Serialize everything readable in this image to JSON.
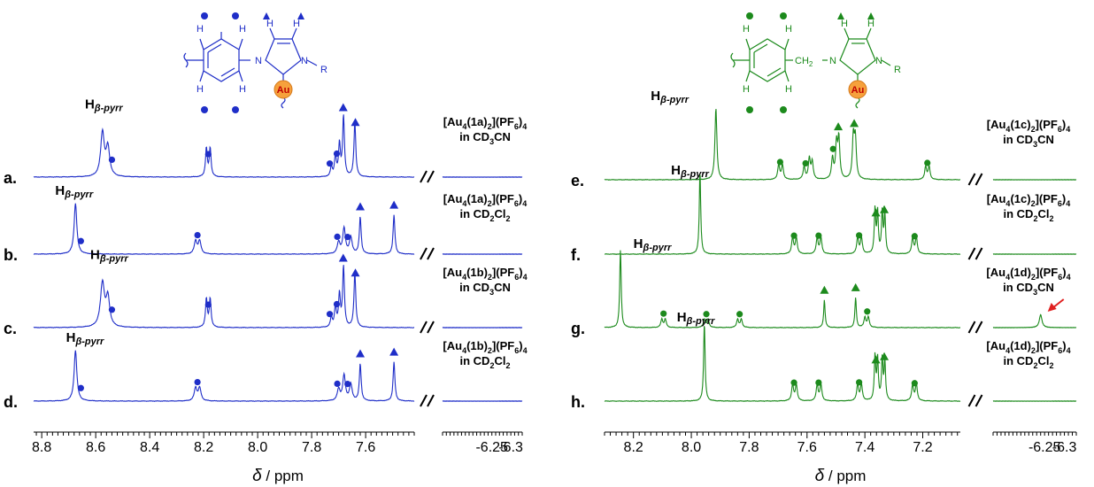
{
  "chart_data": [
    {
      "type": "line",
      "panel": "left",
      "color": "#1f2ec8",
      "xlabel_symbol": "δ",
      "xlabel_unit": "/ ppm",
      "x_ticks": [
        "8.8",
        "8.6",
        "8.4",
        "8.2",
        "8.0",
        "7.8",
        "7.6"
      ],
      "x_ticks_break": [
        "-6.25",
        "-6.3"
      ],
      "xlim": [
        8.83,
        7.42
      ],
      "xlim_break": [
        -6.12,
        -6.33
      ],
      "structure_labels": {
        "h": "H",
        "n1": "N",
        "n2": "N",
        "r": "R",
        "au": "Au"
      },
      "peak_label": {
        "main": "H",
        "sub": "β-pyrr"
      },
      "rows": [
        {
          "id": "a.",
          "ann1": "[Au",
          "s1": "4",
          "ann2": "(1a)",
          "s2": "2",
          "ann3": "](PF",
          "s3": "6",
          "ann4": ")",
          "s4": "4",
          "solvent": "in CD",
          "sol_sub": "3",
          "sol_end": "CN",
          "peaks": [
            {
              "x": 8.575,
              "h": 0.95,
              "w": 0.008
            },
            {
              "x": 8.555,
              "h": 0.62,
              "w": 0.008
            },
            {
              "x": 8.19,
              "h": 0.62,
              "w": 0.004
            },
            {
              "x": 8.176,
              "h": 0.62,
              "w": 0.004
            },
            {
              "x": 7.727,
              "h": 0.22,
              "w": 0.004
            },
            {
              "x": 7.712,
              "h": 0.45,
              "w": 0.004
            },
            {
              "x": 7.697,
              "h": 0.7,
              "w": 0.004
            },
            {
              "x": 7.682,
              "h": 1.3,
              "w": 0.004
            },
            {
              "x": 7.64,
              "h": 1.2,
              "w": 0.004
            }
          ],
          "markers": [
            {
              "x": 8.54,
              "type": "circle"
            },
            {
              "x": 8.183,
              "type": "circle"
            },
            {
              "x": 7.733,
              "type": "circle"
            },
            {
              "x": 7.707,
              "type": "circle"
            },
            {
              "x": 7.683,
              "type": "triangle"
            },
            {
              "x": 7.638,
              "type": "triangle"
            }
          ],
          "hlabel_x": 8.64
        },
        {
          "id": "b.",
          "ann1": "[Au",
          "s1": "4",
          "ann2": "(1a)",
          "s2": "2",
          "ann3": "](PF",
          "s3": "6",
          "ann4": ")",
          "s4": "4",
          "solvent": "in CD",
          "sol_sub": "2",
          "sol_end": "Cl",
          "sol_sub2": "2",
          "peaks": [
            {
              "x": 8.675,
              "h": 1.1,
              "w": 0.006
            },
            {
              "x": 8.23,
              "h": 0.28,
              "w": 0.006
            },
            {
              "x": 8.215,
              "h": 0.28,
              "w": 0.006
            },
            {
              "x": 7.7,
              "h": 0.25,
              "w": 0.006
            },
            {
              "x": 7.68,
              "h": 0.55,
              "w": 0.006
            },
            {
              "x": 7.655,
              "h": 0.35,
              "w": 0.006
            },
            {
              "x": 7.62,
              "h": 0.8,
              "w": 0.004
            },
            {
              "x": 7.495,
              "h": 0.85,
              "w": 0.004
            }
          ],
          "markers": [
            {
              "x": 8.655,
              "type": "circle"
            },
            {
              "x": 8.223,
              "type": "circle"
            },
            {
              "x": 7.705,
              "type": "circle"
            },
            {
              "x": 7.667,
              "type": "circle"
            },
            {
              "x": 7.62,
              "type": "triangle"
            },
            {
              "x": 7.495,
              "type": "triangle"
            }
          ],
          "hlabel_x": 8.75
        },
        {
          "id": "c.",
          "ann1": "[Au",
          "s1": "4",
          "ann2": "(1b)",
          "s2": "2",
          "ann3": "](PF",
          "s3": "6",
          "ann4": ")",
          "s4": "4",
          "solvent": "in CD",
          "sol_sub": "3",
          "sol_end": "CN",
          "peaks": [
            {
              "x": 8.575,
              "h": 0.95,
              "w": 0.009
            },
            {
              "x": 8.555,
              "h": 0.62,
              "w": 0.008
            },
            {
              "x": 8.19,
              "h": 0.62,
              "w": 0.004
            },
            {
              "x": 8.176,
              "h": 0.62,
              "w": 0.004
            },
            {
              "x": 7.727,
              "h": 0.22,
              "w": 0.004
            },
            {
              "x": 7.712,
              "h": 0.45,
              "w": 0.004
            },
            {
              "x": 7.697,
              "h": 0.7,
              "w": 0.004
            },
            {
              "x": 7.682,
              "h": 1.3,
              "w": 0.004
            },
            {
              "x": 7.64,
              "h": 1.2,
              "w": 0.004
            }
          ],
          "markers": [
            {
              "x": 8.54,
              "type": "circle"
            },
            {
              "x": 8.183,
              "type": "circle"
            },
            {
              "x": 7.733,
              "type": "circle"
            },
            {
              "x": 7.707,
              "type": "circle"
            },
            {
              "x": 7.683,
              "type": "triangle"
            },
            {
              "x": 7.638,
              "type": "triangle"
            }
          ],
          "hlabel_x": 8.62
        },
        {
          "id": "d.",
          "ann1": "[Au",
          "s1": "4",
          "ann2": "(1b)",
          "s2": "2",
          "ann3": "](PF",
          "s3": "6",
          "ann4": ")",
          "s4": "4",
          "solvent": "in CD",
          "sol_sub": "2",
          "sol_end": "Cl",
          "sol_sub2": "2",
          "peaks": [
            {
              "x": 8.675,
              "h": 1.1,
              "w": 0.006
            },
            {
              "x": 8.23,
              "h": 0.28,
              "w": 0.006
            },
            {
              "x": 8.215,
              "h": 0.28,
              "w": 0.006
            },
            {
              "x": 7.7,
              "h": 0.25,
              "w": 0.006
            },
            {
              "x": 7.68,
              "h": 0.55,
              "w": 0.006
            },
            {
              "x": 7.655,
              "h": 0.35,
              "w": 0.006
            },
            {
              "x": 7.62,
              "h": 0.8,
              "w": 0.004
            },
            {
              "x": 7.495,
              "h": 0.85,
              "w": 0.004
            }
          ],
          "markers": [
            {
              "x": 8.655,
              "type": "circle"
            },
            {
              "x": 8.223,
              "type": "circle"
            },
            {
              "x": 7.705,
              "type": "circle"
            },
            {
              "x": 7.667,
              "type": "circle"
            },
            {
              "x": 7.62,
              "type": "triangle"
            },
            {
              "x": 7.495,
              "type": "triangle"
            }
          ],
          "hlabel_x": 8.71
        }
      ]
    },
    {
      "type": "line",
      "panel": "right",
      "color": "#1c8a1c",
      "xlabel_symbol": "δ",
      "xlabel_unit": "/ ppm",
      "x_ticks": [
        "8.2",
        "8.0",
        "7.8",
        "7.6",
        "7.4",
        "7.2"
      ],
      "x_ticks_break": [
        "-6.25",
        "-6.3"
      ],
      "xlim": [
        8.3,
        7.07
      ],
      "xlim_break": [
        -6.12,
        -6.33
      ],
      "structure_labels": {
        "h": "H",
        "n1": "N",
        "n2": "N",
        "r": "R",
        "ch2": "CH",
        "ch2sub": "2",
        "au": "Au"
      },
      "peak_label": {
        "main": "H",
        "sub": "β-pyrr"
      },
      "rows": [
        {
          "id": "e.",
          "ann1": "[Au",
          "s1": "4",
          "ann2": "(1c)",
          "s2": "2",
          "ann3": "](PF",
          "s3": "6",
          "ann4": ")",
          "s4": "4",
          "solvent": "in CD",
          "sol_sub": "3",
          "sol_end": "CN",
          "peaks": [
            {
              "x": 7.915,
              "h": 1.55,
              "w": 0.004
            },
            {
              "x": 7.698,
              "h": 0.32,
              "w": 0.004
            },
            {
              "x": 7.685,
              "h": 0.32,
              "w": 0.004
            },
            {
              "x": 7.61,
              "h": 0.28,
              "w": 0.004
            },
            {
              "x": 7.592,
              "h": 0.45,
              "w": 0.004
            },
            {
              "x": 7.582,
              "h": 0.38,
              "w": 0.004
            },
            {
              "x": 7.512,
              "h": 0.45,
              "w": 0.004
            },
            {
              "x": 7.498,
              "h": 0.75,
              "w": 0.004
            },
            {
              "x": 7.49,
              "h": 0.85,
              "w": 0.004
            },
            {
              "x": 7.44,
              "h": 0.9,
              "w": 0.004
            },
            {
              "x": 7.433,
              "h": 0.85,
              "w": 0.004
            },
            {
              "x": 7.19,
              "h": 0.28,
              "w": 0.004
            },
            {
              "x": 7.178,
              "h": 0.28,
              "w": 0.004
            }
          ],
          "markers": [
            {
              "x": 7.693,
              "type": "circle"
            },
            {
              "x": 7.605,
              "type": "circle"
            },
            {
              "x": 7.51,
              "type": "circle"
            },
            {
              "x": 7.492,
              "type": "triangle"
            },
            {
              "x": 7.437,
              "type": "triangle"
            },
            {
              "x": 7.184,
              "type": "circle"
            }
          ],
          "hlabel_x": 8.14
        },
        {
          "id": "f.",
          "ann1": "[Au",
          "s1": "4",
          "ann2": "(1c)",
          "s2": "2",
          "ann3": "](PF",
          "s3": "6",
          "ann4": ")",
          "s4": "4",
          "solvent": "in CD",
          "sol_sub": "2",
          "sol_end": "Cl",
          "sol_sub2": "2",
          "peaks": [
            {
              "x": 7.97,
              "h": 1.8,
              "w": 0.003
            },
            {
              "x": 7.65,
              "h": 0.35,
              "w": 0.004
            },
            {
              "x": 7.637,
              "h": 0.35,
              "w": 0.004
            },
            {
              "x": 7.565,
              "h": 0.35,
              "w": 0.004
            },
            {
              "x": 7.552,
              "h": 0.35,
              "w": 0.004
            },
            {
              "x": 7.425,
              "h": 0.35,
              "w": 0.004
            },
            {
              "x": 7.412,
              "h": 0.35,
              "w": 0.004
            },
            {
              "x": 7.365,
              "h": 0.95,
              "w": 0.003
            },
            {
              "x": 7.356,
              "h": 0.9,
              "w": 0.003
            },
            {
              "x": 7.34,
              "h": 0.9,
              "w": 0.003
            },
            {
              "x": 7.331,
              "h": 0.85,
              "w": 0.003
            },
            {
              "x": 7.235,
              "h": 0.35,
              "w": 0.004
            },
            {
              "x": 7.222,
              "h": 0.35,
              "w": 0.004
            }
          ],
          "markers": [
            {
              "x": 7.645,
              "type": "circle"
            },
            {
              "x": 7.56,
              "type": "circle"
            },
            {
              "x": 7.42,
              "type": "circle"
            },
            {
              "x": 7.362,
              "type": "triangle"
            },
            {
              "x": 7.333,
              "type": "triangle"
            },
            {
              "x": 7.228,
              "type": "circle"
            }
          ],
          "hlabel_x": 8.07
        },
        {
          "id": "g.",
          "ann1": "[Au",
          "s1": "4",
          "ann2": "(1d)",
          "s2": "2",
          "ann3": "](PF",
          "s3": "6",
          "ann4": ")",
          "s4": "4",
          "solvent": "in CD",
          "sol_sub": "3",
          "sol_end": "CN",
          "peaks": [
            {
              "x": 8.245,
              "h": 1.7,
              "w": 0.003
            },
            {
              "x": 8.102,
              "h": 0.18,
              "w": 0.004
            },
            {
              "x": 8.09,
              "h": 0.18,
              "w": 0.004
            },
            {
              "x": 7.955,
              "h": 0.18,
              "w": 0.004
            },
            {
              "x": 7.942,
              "h": 0.18,
              "w": 0.004
            },
            {
              "x": 7.84,
              "h": 0.18,
              "w": 0.004
            },
            {
              "x": 7.827,
              "h": 0.18,
              "w": 0.004
            },
            {
              "x": 7.54,
              "h": 0.6,
              "w": 0.003
            },
            {
              "x": 7.432,
              "h": 0.65,
              "w": 0.003
            },
            {
              "x": 7.4,
              "h": 0.22,
              "w": 0.004
            },
            {
              "x": 7.388,
              "h": 0.22,
              "w": 0.004
            }
          ],
          "break_peaks": [
            {
              "x": -6.24,
              "h": 0.28,
              "w": 0.004
            }
          ],
          "markers": [
            {
              "x": 8.096,
              "type": "circle"
            },
            {
              "x": 7.948,
              "type": "circle"
            },
            {
              "x": 7.833,
              "type": "circle"
            },
            {
              "x": 7.54,
              "type": "triangle"
            },
            {
              "x": 7.432,
              "type": "triangle"
            },
            {
              "x": 7.392,
              "type": "circle"
            }
          ],
          "hlabel_x": 8.2
        },
        {
          "id": "h.",
          "ann1": "[Au",
          "s1": "4",
          "ann2": "(1d)",
          "s2": "2",
          "ann3": "](PF",
          "s3": "6",
          "ann4": ")",
          "s4": "4",
          "solvent": "in CD",
          "sol_sub": "2",
          "sol_end": "Cl",
          "sol_sub2": "2",
          "peaks": [
            {
              "x": 7.955,
              "h": 1.7,
              "w": 0.003
            },
            {
              "x": 7.65,
              "h": 0.35,
              "w": 0.004
            },
            {
              "x": 7.637,
              "h": 0.35,
              "w": 0.004
            },
            {
              "x": 7.565,
              "h": 0.35,
              "w": 0.004
            },
            {
              "x": 7.552,
              "h": 0.35,
              "w": 0.004
            },
            {
              "x": 7.425,
              "h": 0.35,
              "w": 0.004
            },
            {
              "x": 7.412,
              "h": 0.35,
              "w": 0.004
            },
            {
              "x": 7.365,
              "h": 0.95,
              "w": 0.003
            },
            {
              "x": 7.356,
              "h": 0.9,
              "w": 0.003
            },
            {
              "x": 7.34,
              "h": 0.9,
              "w": 0.003
            },
            {
              "x": 7.331,
              "h": 0.85,
              "w": 0.003
            },
            {
              "x": 7.235,
              "h": 0.35,
              "w": 0.004
            },
            {
              "x": 7.222,
              "h": 0.35,
              "w": 0.004
            }
          ],
          "markers": [
            {
              "x": 7.645,
              "type": "circle"
            },
            {
              "x": 7.56,
              "type": "circle"
            },
            {
              "x": 7.42,
              "type": "circle"
            },
            {
              "x": 7.362,
              "type": "triangle"
            },
            {
              "x": 7.333,
              "type": "triangle"
            },
            {
              "x": 7.228,
              "type": "circle"
            }
          ],
          "hlabel_x": 8.05
        }
      ]
    }
  ],
  "arrow_color": "#e02020"
}
